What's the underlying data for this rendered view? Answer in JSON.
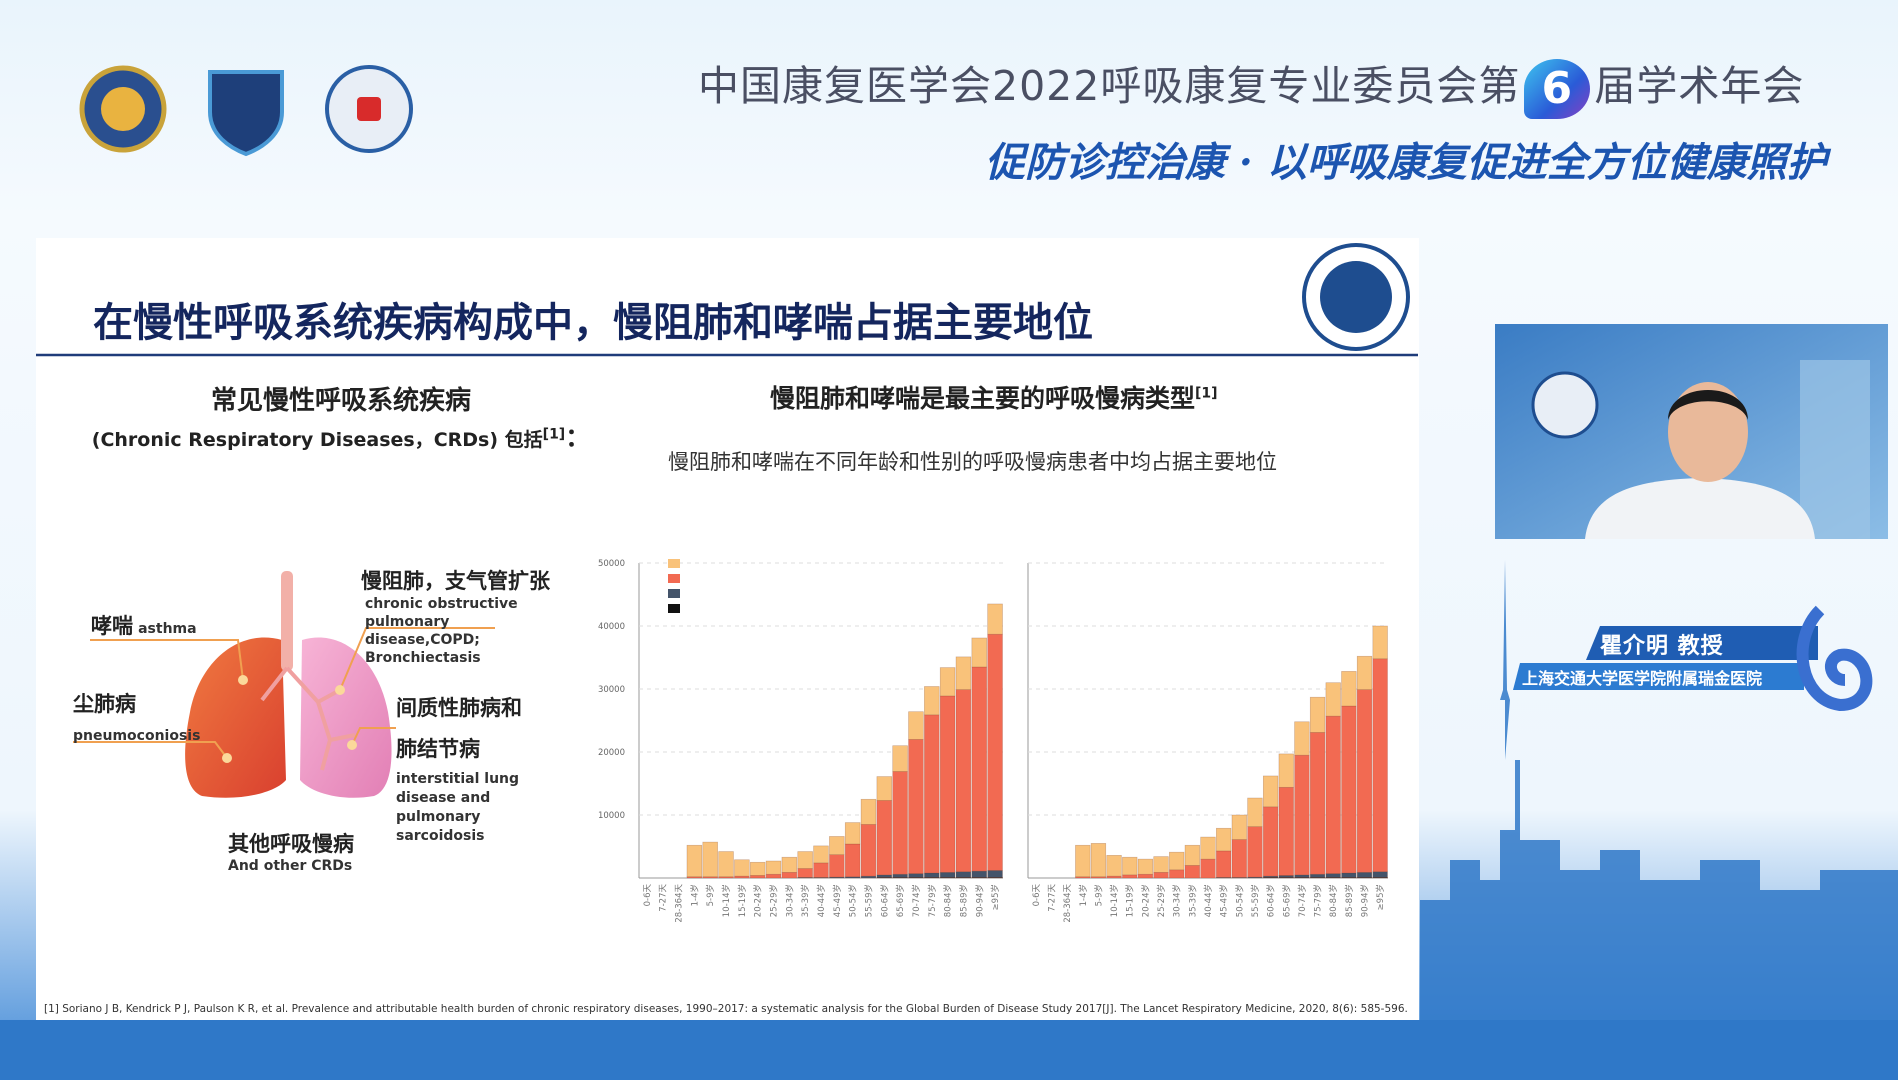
{
  "header": {
    "title_prefix": "中国康复医学会2022呼吸康复专业委员会第",
    "session_number": "6",
    "title_suffix": "届学术年会",
    "slogan": "促防诊控治康 · 以呼吸康复促进全方位健康照护"
  },
  "slide": {
    "title": "在慢性呼吸系统疾病构成中，慢阻肺和哮喘占据主要地位",
    "left_heading": "常见慢性呼吸系统疾病",
    "left_subheading": "(Chronic Respiratory Diseases，CRDs) 包括",
    "left_ref": "[1]",
    "left_colon": "：",
    "right_heading": "慢阻肺和哮喘是最主要的呼吸慢病类型",
    "right_ref": "[1]",
    "right_subtitle": "慢阻肺和哮喘在不同年龄和性别的呼吸慢病患者中均占据主要地位",
    "diagram_labels": [
      {
        "zh": "哮喘",
        "en": "asthma"
      },
      {
        "zh": "尘肺病",
        "en": "pneumoconiosis"
      },
      {
        "zh": "慢阻肺，支气管扩张",
        "en": "chronic obstructive pulmonary disease,COPD; Bronchiectasis"
      },
      {
        "zh": "间质性肺病和肺结节病",
        "en": "interstitial lung disease and pulmonary sarcoidosis"
      },
      {
        "zh": "其他呼吸慢病",
        "en": "And other CRDs"
      }
    ],
    "footnote": "[1] Soriano J B, Kendrick P J, Paulson K R, et al. Prevalence and attributable health burden of chronic respiratory diseases, 1990–2017: a systematic analysis for the Global Burden of Disease Study 2017[J]. The Lancet Respiratory Medicine, 2020, 8(6): 585-596."
  },
  "chart_data": [
    {
      "type": "stacked_bar",
      "categories": [
        "0-6天",
        "7-27天",
        "28-364天",
        "1-4岁",
        "5-9岁",
        "10-14岁",
        "15-19岁",
        "20-24岁",
        "25-29岁",
        "30-34岁",
        "35-39岁",
        "40-44岁",
        "45-49岁",
        "50-54岁",
        "55-59岁",
        "60-64岁",
        "65-69岁",
        "70-74岁",
        "75-79岁",
        "80-84岁",
        "85-89岁",
        "90-94岁",
        "≥95岁"
      ],
      "series": [
        {
          "color": "#f9c27a",
          "values": [
            0,
            0,
            0,
            5000,
            5500,
            4000,
            2600,
            2100,
            2100,
            2400,
            2700,
            2700,
            2900,
            3400,
            4000,
            3800,
            4100,
            4400,
            4500,
            4500,
            5200,
            4600,
            4800
          ]
        },
        {
          "color": "#f26a52",
          "values": [
            0,
            0,
            0,
            200,
            200,
            200,
            300,
            400,
            600,
            900,
            1400,
            2300,
            3550,
            5200,
            8200,
            11800,
            16300,
            21300,
            25100,
            28000,
            28900,
            32400,
            37500
          ]
        },
        {
          "color": "#44546a",
          "values": [
            0,
            0,
            0,
            0,
            0,
            0,
            0,
            0,
            0,
            0,
            100,
            100,
            150,
            200,
            300,
            400,
            500,
            600,
            700,
            800,
            900,
            1000,
            1100
          ]
        },
        {
          "color": "#111111",
          "values": [
            0,
            0,
            0,
            0,
            0,
            0,
            0,
            0,
            0,
            0,
            0,
            0,
            0,
            0,
            0,
            100,
            100,
            100,
            100,
            100,
            100,
            100,
            100
          ]
        }
      ],
      "ylim": [
        0,
        50000
      ],
      "yticks": [
        10000,
        20000,
        30000,
        40000,
        50000
      ],
      "grid": true,
      "legend": "upper left"
    },
    {
      "type": "stacked_bar",
      "categories": [
        "0-6天",
        "7-27天",
        "28-364天",
        "1-4岁",
        "5-9岁",
        "10-14岁",
        "15-19岁",
        "20-24岁",
        "25-29岁",
        "30-34岁",
        "35-39岁",
        "40-44岁",
        "45-49岁",
        "50-54岁",
        "55-59岁",
        "60-64岁",
        "65-69岁",
        "70-74岁",
        "75-79岁",
        "80-84岁",
        "85-89岁",
        "90-94岁",
        "≥95岁"
      ],
      "series": [
        {
          "color": "#f9c27a",
          "values": [
            0,
            0,
            0,
            5000,
            5300,
            3300,
            2800,
            2400,
            2500,
            2800,
            3200,
            3500,
            3600,
            3900,
            4550,
            4900,
            5300,
            5300,
            5600,
            5300,
            5500,
            5300,
            5200
          ]
        },
        {
          "color": "#f26a52",
          "values": [
            0,
            0,
            0,
            200,
            200,
            300,
            500,
            600,
            900,
            1300,
            2000,
            3000,
            4200,
            6000,
            8000,
            11000,
            14000,
            19000,
            22500,
            25000,
            26500,
            29000,
            33800
          ]
        },
        {
          "color": "#44546a",
          "values": [
            0,
            0,
            0,
            0,
            0,
            0,
            0,
            0,
            0,
            0,
            0,
            0,
            100,
            100,
            150,
            200,
            300,
            400,
            500,
            600,
            700,
            800,
            900
          ]
        },
        {
          "color": "#111111",
          "values": [
            0,
            0,
            0,
            0,
            0,
            0,
            0,
            0,
            0,
            0,
            0,
            0,
            0,
            0,
            0,
            100,
            100,
            100,
            100,
            100,
            100,
            100,
            100
          ]
        }
      ],
      "ylim": [
        0,
        50000
      ],
      "yticks": [
        10000,
        20000,
        30000,
        40000,
        50000
      ],
      "ytick_labels": false,
      "grid": true
    }
  ],
  "speaker": {
    "name": "瞿介明 教授",
    "affiliation": "上海交通大学医学院附属瑞金医院"
  }
}
